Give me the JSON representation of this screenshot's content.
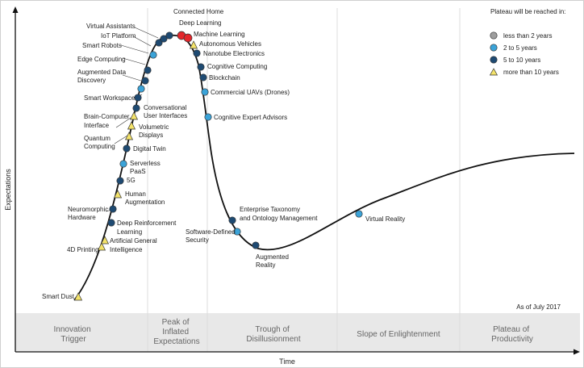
{
  "axes": {
    "y_label": "Expectations",
    "x_label": "Time"
  },
  "phases": [
    {
      "line1": "Innovation",
      "line2": "Trigger",
      "line3": ""
    },
    {
      "line1": "Peak of",
      "line2": "Inflated",
      "line3": "Expectations"
    },
    {
      "line1": "Trough of",
      "line2": "Disillusionment",
      "line3": ""
    },
    {
      "line1": "Slope of Enlightenment",
      "line2": "",
      "line3": ""
    },
    {
      "line1": "Plateau of",
      "line2": "Productivity",
      "line3": ""
    }
  ],
  "legend": {
    "title": "Plateau will be reached in:",
    "items": [
      {
        "label": "less than 2 years",
        "shape": "circle",
        "color": "#9e9e9e"
      },
      {
        "label": "2 to 5 years",
        "shape": "circle",
        "color": "#3ba3d8"
      },
      {
        "label": "5 to 10 years",
        "shape": "circle",
        "color": "#1e4a72"
      },
      {
        "label": "more than 10 years",
        "shape": "triangle",
        "color": "#f4e36a"
      }
    ]
  },
  "as_of": "As of July 2017",
  "colors": {
    "horizon_lt2": "#9e9e9e",
    "horizon_2to5": "#3ba3d8",
    "horizon_5to10": "#1e4a72",
    "horizon_gt10": "#f4e36a",
    "highlight": "#e3262b"
  },
  "technologies": [
    {
      "name": "Smart Dust",
      "horizon": "more than 10 years"
    },
    {
      "name": "4D Printing",
      "horizon": "more than 10 years"
    },
    {
      "name": "Artificial General Intelligence",
      "horizon": "more than 10 years"
    },
    {
      "name": "Deep Reinforcement Learning",
      "horizon": "5 to 10 years"
    },
    {
      "name": "Neuromorphic Hardware",
      "horizon": "5 to 10 years"
    },
    {
      "name": "Human Augmentation",
      "horizon": "more than 10 years"
    },
    {
      "name": "5G",
      "horizon": "5 to 10 years"
    },
    {
      "name": "Serverless PaaS",
      "horizon": "2 to 5 years"
    },
    {
      "name": "Digital Twin",
      "horizon": "5 to 10 years"
    },
    {
      "name": "Quantum Computing",
      "horizon": "more than 10 years"
    },
    {
      "name": "Volumetric Displays",
      "horizon": "more than 10 years"
    },
    {
      "name": "Brain-Computer Interface",
      "horizon": "more than 10 years"
    },
    {
      "name": "Conversational User Interfaces",
      "horizon": "5 to 10 years"
    },
    {
      "name": "Smart Workspace",
      "horizon": "5 to 10 years"
    },
    {
      "name": "Augmented Data Discovery",
      "horizon": "2 to 5 years"
    },
    {
      "name": "Edge Computing",
      "horizon": "2 to 5 years"
    },
    {
      "name": "Smart Robots",
      "horizon": "2 to 5 years"
    },
    {
      "name": "IoT Platform",
      "horizon": "2 to 5 years"
    },
    {
      "name": "Virtual Assistants",
      "horizon": "2 to 5 years"
    },
    {
      "name": "Connected Home",
      "horizon": "5 to 10 years"
    },
    {
      "name": "Deep Learning",
      "horizon": "2 to 5 years"
    },
    {
      "name": "Machine Learning",
      "horizon": "2 to 5 years"
    },
    {
      "name": "Autonomous Vehicles",
      "horizon": "more than 10 years"
    },
    {
      "name": "Nanotube Electronics",
      "horizon": "5 to 10 years"
    },
    {
      "name": "Cognitive Computing",
      "horizon": "5 to 10 years"
    },
    {
      "name": "Blockchain",
      "horizon": "5 to 10 years"
    },
    {
      "name": "Commercial UAVs (Drones)",
      "horizon": "2 to 5 years"
    },
    {
      "name": "Cognitive Expert Advisors",
      "horizon": "2 to 5 years"
    },
    {
      "name": "Enterprise Taxonomy and Ontology Management",
      "horizon": "5 to 10 years"
    },
    {
      "name": "Software-Defined Security",
      "horizon": "2 to 5 years"
    },
    {
      "name": "Augmented Reality",
      "horizon": "5 to 10 years"
    },
    {
      "name": "Virtual Reality",
      "horizon": "2 to 5 years"
    }
  ]
}
